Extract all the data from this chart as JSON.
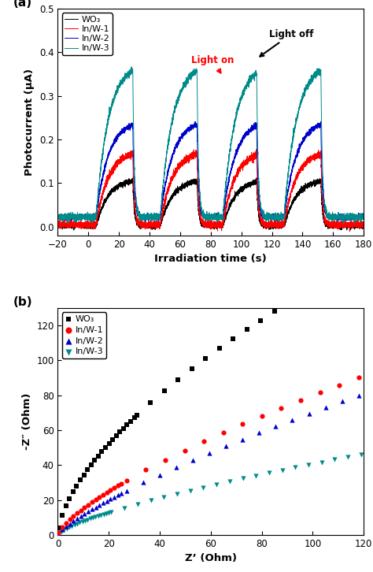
{
  "panel_a": {
    "title_label": "(a)",
    "xlabel": "Irradiation time (s)",
    "ylabel": "Photocurrent (μA)",
    "xlim": [
      -20,
      180
    ],
    "ylim": [
      -0.02,
      0.5
    ],
    "yticks": [
      0.0,
      0.1,
      0.2,
      0.3,
      0.4,
      0.5
    ],
    "xticks": [
      -20,
      0,
      20,
      40,
      60,
      80,
      100,
      120,
      140,
      160,
      180
    ],
    "on_times": [
      5,
      47,
      88,
      128
    ],
    "off_times": [
      29,
      71,
      110,
      152
    ],
    "colors": {
      "WO3": "#000000",
      "InW1": "#ff0000",
      "InW2": "#0000cc",
      "InW3": "#008b8b"
    },
    "levels": {
      "WO3": {
        "on": 0.11,
        "off": 0.002
      },
      "InW1": {
        "on": 0.175,
        "off": 0.005
      },
      "InW2": {
        "on": 0.245,
        "off": 0.022
      },
      "InW3": {
        "on": 0.375,
        "off": 0.022
      }
    },
    "legend": [
      "WO₃",
      "In/W-1",
      "In/W-2",
      "In/W-3"
    ],
    "noise": {
      "WO3": 0.003,
      "InW1": 0.004,
      "InW2": 0.003,
      "InW3": 0.004
    }
  },
  "panel_b": {
    "title_label": "(b)",
    "xlabel": "Z’ (Ohm)",
    "ylabel": "-Z″ (Ohm)",
    "xlim": [
      0,
      120
    ],
    "ylim": [
      0,
      130
    ],
    "yticks": [
      0,
      20,
      40,
      60,
      80,
      100,
      120
    ],
    "xticks": [
      0,
      20,
      40,
      60,
      80,
      100,
      120
    ],
    "colors": {
      "WO3": "#000000",
      "InW1": "#ff0000",
      "InW2": "#0000cc",
      "InW3": "#008b8b"
    },
    "legend": [
      "WO₃",
      "In/W-1",
      "In/W-2",
      "In/W-3"
    ],
    "markers": {
      "WO3": "s",
      "InW1": "o",
      "InW2": "^",
      "InW3": "v"
    }
  }
}
